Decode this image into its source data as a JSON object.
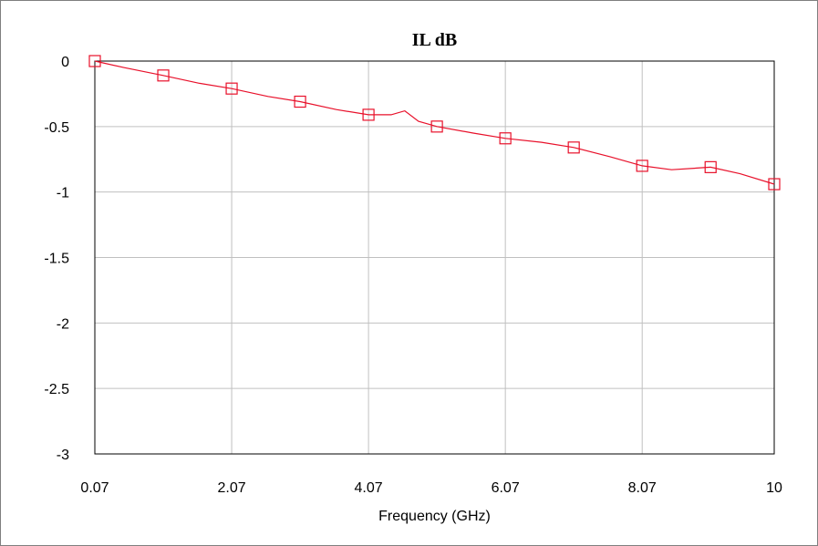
{
  "chart_data": {
    "type": "line",
    "title": "IL dB",
    "xlabel": "Frequency (GHz)",
    "ylabel": "",
    "xlim": [
      0.07,
      10
    ],
    "ylim": [
      -3,
      0
    ],
    "x_ticks": [
      0.07,
      2.07,
      4.07,
      6.07,
      8.07,
      10
    ],
    "x_tick_labels": [
      "0.07",
      "2.07",
      "4.07",
      "6.07",
      "8.07",
      "10"
    ],
    "y_ticks": [
      0,
      -0.5,
      -1,
      -1.5,
      -2,
      -2.5,
      -3
    ],
    "y_tick_labels": [
      "0",
      "-0.5",
      "-1",
      "-1.5",
      "-2",
      "-2.5",
      "-3"
    ],
    "grid": true,
    "series": [
      {
        "color": "#e8102a",
        "marker": "square",
        "x": [
          0.07,
          0.5,
          1.07,
          1.6,
          2.07,
          2.6,
          3.07,
          3.6,
          4.07,
          4.4,
          4.6,
          4.8,
          5.07,
          5.6,
          6.07,
          6.6,
          7.07,
          7.6,
          8.07,
          8.5,
          9.07,
          9.5,
          10
        ],
        "y": [
          0.0,
          -0.05,
          -0.11,
          -0.17,
          -0.21,
          -0.27,
          -0.31,
          -0.37,
          -0.41,
          -0.41,
          -0.38,
          -0.46,
          -0.5,
          -0.55,
          -0.59,
          -0.62,
          -0.66,
          -0.73,
          -0.8,
          -0.83,
          -0.81,
          -0.86,
          -0.94
        ]
      }
    ],
    "marker_points": [
      {
        "x": 0.07,
        "y": 0.0
      },
      {
        "x": 1.07,
        "y": -0.11
      },
      {
        "x": 2.07,
        "y": -0.21
      },
      {
        "x": 3.07,
        "y": -0.31
      },
      {
        "x": 4.07,
        "y": -0.41
      },
      {
        "x": 5.07,
        "y": -0.5
      },
      {
        "x": 6.07,
        "y": -0.59
      },
      {
        "x": 7.07,
        "y": -0.66
      },
      {
        "x": 8.07,
        "y": -0.8
      },
      {
        "x": 9.07,
        "y": -0.81
      },
      {
        "x": 10,
        "y": -0.94
      }
    ]
  }
}
